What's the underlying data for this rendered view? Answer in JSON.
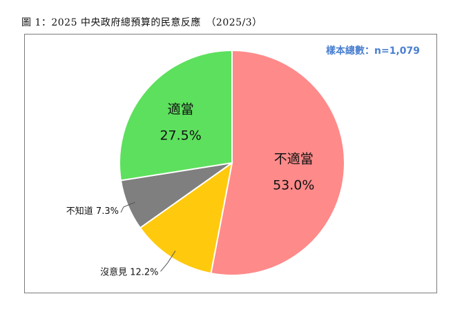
{
  "caption": "圖 1：2025 中央政府總預算的民意反應　（2025/3）",
  "sample_label": "樣本總數：n=1,079",
  "colors": {
    "accent_text": "#4a7fd0"
  },
  "chart_data": {
    "type": "pie",
    "title": "",
    "slices": [
      {
        "name": "不適當",
        "value": 53.0,
        "label": "53.0%",
        "color": "#ff8a8a"
      },
      {
        "name": "沒意見",
        "value": 12.2,
        "label": "12.2%",
        "color": "#ffc90e"
      },
      {
        "name": "不知道",
        "value": 7.3,
        "label": "7.3%",
        "color": "#7f7f7f"
      },
      {
        "name": "適當",
        "value": 27.5,
        "label": "27.5%",
        "color": "#5de05d"
      }
    ],
    "start": "12 o'clock",
    "direction": "clockwise",
    "legend": "none"
  }
}
